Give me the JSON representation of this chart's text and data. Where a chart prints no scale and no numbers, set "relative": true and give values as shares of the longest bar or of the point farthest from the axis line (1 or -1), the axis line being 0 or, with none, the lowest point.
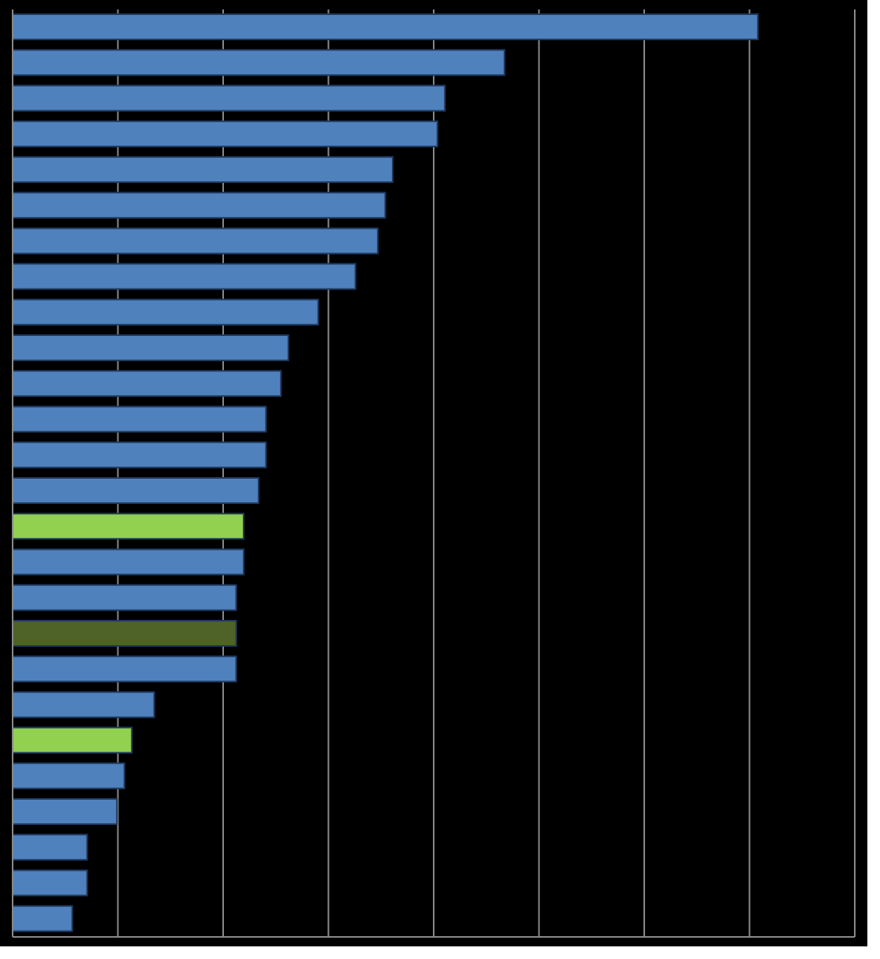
{
  "chart_data": {
    "type": "bar",
    "orientation": "horizontal",
    "relative": true,
    "grid": "x",
    "categories": [
      null,
      null,
      null,
      null,
      null,
      null,
      null,
      null,
      null,
      null,
      null,
      null,
      null,
      null,
      null,
      null,
      null,
      null,
      null,
      null,
      null,
      null,
      null,
      null,
      null,
      null
    ],
    "values": [
      1,
      0.66,
      0.58,
      0.57,
      0.51,
      0.5,
      0.49,
      0.46,
      0.41,
      0.37,
      0.36,
      0.34,
      0.34,
      0.33,
      0.31,
      0.31,
      0.3,
      0.3,
      0.3,
      0.19,
      0.16,
      0.15,
      0.14,
      0.1,
      0.1,
      0.08
    ],
    "colors": [
      "#4f81bd",
      "#4f81bd",
      "#4f81bd",
      "#4f81bd",
      "#4f81bd",
      "#4f81bd",
      "#4f81bd",
      "#4f81bd",
      "#4f81bd",
      "#4f81bd",
      "#4f81bd",
      "#4f81bd",
      "#4f81bd",
      "#4f81bd",
      "#92d050",
      "#4f81bd",
      "#4f81bd",
      "#4f6228",
      "#4f81bd",
      "#4f81bd",
      "#92d050",
      "#4f81bd",
      "#4f81bd",
      "#4f81bd",
      "#4f81bd",
      "#4f81bd"
    ]
  }
}
